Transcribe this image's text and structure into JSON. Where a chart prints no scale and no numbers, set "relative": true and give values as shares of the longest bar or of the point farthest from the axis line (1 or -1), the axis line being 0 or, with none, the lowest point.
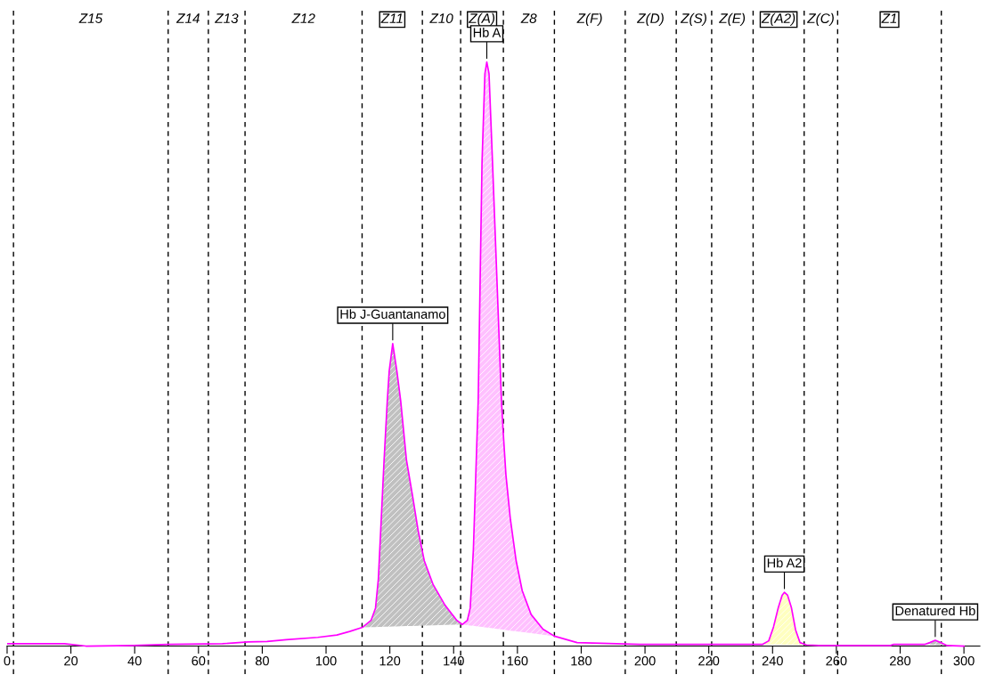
{
  "chart_data": {
    "type": "line",
    "relative": true,
    "tick_labels": "x",
    "xlim": [
      0,
      305
    ],
    "xticks": [
      0,
      20,
      40,
      60,
      80,
      100,
      120,
      140,
      160,
      180,
      200,
      220,
      240,
      260,
      280,
      300
    ],
    "series": [
      {
        "color": "#ff00ff",
        "x": [
          0,
          18,
          24.7,
          39.6,
          50.6,
          67.5,
          75.5,
          81.5,
          87.5,
          97.4,
          103.4,
          107.4,
          111.4,
          114.1,
          115.5,
          116.4,
          117.3,
          118.2,
          119.2,
          119.8,
          120.9,
          122.2,
          123.4,
          125.2,
          127.1,
          128.9,
          130.8,
          133.6,
          137.3,
          141,
          142.7,
          144.3,
          145.2,
          146.2,
          147.1,
          147.7,
          148.9,
          149.8,
          150.4,
          151.1,
          152.2,
          153.6,
          155,
          155.5,
          156.4,
          157.8,
          159.6,
          161.5,
          164.3,
          168,
          171.6,
          178.7,
          198.4,
          220,
          236.9,
          238.8,
          240.3,
          241.8,
          243,
          243.7,
          244.7,
          245.9,
          247.2,
          248.6,
          250.6,
          254.5,
          277,
          278,
          287.8,
          289.3,
          291,
          292.7,
          294.7,
          300
        ],
        "values": [
          0.004,
          0.004,
          0,
          0.001,
          0.003,
          0.004,
          0.007,
          0.008,
          0.011,
          0.015,
          0.019,
          0.025,
          0.032,
          0.044,
          0.065,
          0.115,
          0.217,
          0.319,
          0.42,
          0.471,
          0.518,
          0.471,
          0.42,
          0.319,
          0.258,
          0.197,
          0.146,
          0.105,
          0.07,
          0.044,
          0.037,
          0.044,
          0.065,
          0.166,
          0.319,
          0.42,
          0.827,
          0.98,
          1,
          0.98,
          0.827,
          0.624,
          0.42,
          0.37,
          0.293,
          0.217,
          0.146,
          0.095,
          0.054,
          0.029,
          0.017,
          0.006,
          0.003,
          0.003,
          0.003,
          0.009,
          0.033,
          0.066,
          0.087,
          0.092,
          0.087,
          0.066,
          0.028,
          0.006,
          0.002,
          0.001,
          0.001,
          0.003,
          0.003,
          0.006,
          0.01,
          0.006,
          0.001,
          0
        ]
      },
      {
        "type": "area",
        "color": "#c0c0c0",
        "x": [
          111.4,
          114.1,
          115.5,
          116.4,
          117.3,
          118.2,
          119.2,
          119.8,
          120.9,
          122.2,
          123.4,
          125.2,
          127.1,
          128.9,
          130.8,
          133.6,
          137.3,
          141,
          142.7
        ],
        "values": [
          0.032,
          0.044,
          0.065,
          0.115,
          0.217,
          0.319,
          0.42,
          0.471,
          0.518,
          0.471,
          0.42,
          0.319,
          0.258,
          0.197,
          0.146,
          0.105,
          0.07,
          0.044,
          0.037
        ]
      },
      {
        "type": "area",
        "color": "#ffc0ff",
        "x": [
          142.7,
          144.3,
          145.2,
          146.2,
          147.1,
          147.7,
          148.9,
          149.8,
          150.4,
          151.1,
          152.2,
          153.6,
          155,
          155.5,
          156.4,
          157.8,
          159.6,
          161.5,
          164.3,
          168,
          171.6
        ],
        "values": [
          0.037,
          0.044,
          0.065,
          0.166,
          0.319,
          0.42,
          0.827,
          0.98,
          1,
          0.98,
          0.827,
          0.624,
          0.42,
          0.37,
          0.293,
          0.217,
          0.146,
          0.095,
          0.054,
          0.029,
          0.017
        ]
      },
      {
        "type": "area",
        "color": "#ffffc0",
        "x": [
          236.9,
          238.8,
          240.3,
          241.8,
          243,
          243.7,
          244.7,
          245.9,
          247.2,
          248.6,
          250.6
        ],
        "values": [
          0.003,
          0.009,
          0.033,
          0.066,
          0.087,
          0.092,
          0.087,
          0.066,
          0.028,
          0.006,
          0.002
        ]
      },
      {
        "type": "area",
        "color": "#c0c0c0",
        "x": [
          287.8,
          289.3,
          291,
          292.7,
          294.7
        ],
        "values": [
          0.003,
          0.006,
          0.01,
          0.006,
          0.001
        ]
      }
    ],
    "ref_lines": [
      {
        "axis": "x",
        "value": 2.0,
        "line_style": "dashed"
      },
      {
        "axis": "x",
        "value": 50.5,
        "line_style": "dashed"
      },
      {
        "axis": "x",
        "value": 63.1,
        "line_style": "dashed"
      },
      {
        "axis": "x",
        "value": 74.6,
        "line_style": "dashed"
      },
      {
        "axis": "x",
        "value": 111.3,
        "line_style": "dashed"
      },
      {
        "axis": "x",
        "value": 130.2,
        "line_style": "dashed"
      },
      {
        "axis": "x",
        "value": 142.2,
        "line_style": "dashed"
      },
      {
        "axis": "x",
        "value": 155.6,
        "line_style": "dashed"
      },
      {
        "axis": "x",
        "value": 171.6,
        "line_style": "dashed"
      },
      {
        "axis": "x",
        "value": 193.8,
        "line_style": "dashed"
      },
      {
        "axis": "x",
        "value": 209.8,
        "line_style": "dashed"
      },
      {
        "axis": "x",
        "value": 220.9,
        "line_style": "dashed"
      },
      {
        "axis": "x",
        "value": 233.9,
        "line_style": "dashed"
      },
      {
        "axis": "x",
        "value": 249.9,
        "line_style": "dashed"
      },
      {
        "axis": "x",
        "value": 260.4,
        "line_style": "dashed"
      },
      {
        "axis": "x",
        "value": 292.9,
        "line_style": "dashed"
      }
    ],
    "annotations": [
      "Z15",
      "Z14",
      "Z13",
      "Z12",
      "Z11",
      "Z10",
      "Z(A)",
      "Z8",
      "Z(F)",
      "Z(D)",
      "Z(S)",
      "Z(E)",
      "Z(A2)",
      "Z(C)",
      "Z1",
      {
        "text": "Hb J-Guantanamo",
        "x": 120.9,
        "y": 0.518
      },
      {
        "text": "Hb A",
        "x": 150.4,
        "y": 1
      },
      {
        "text": "Hb A2",
        "x": 243.7,
        "y": 0.092
      },
      {
        "text": "Denatured Hb",
        "x": 291,
        "y": 0.01
      }
    ],
    "line_style": "solid"
  }
}
